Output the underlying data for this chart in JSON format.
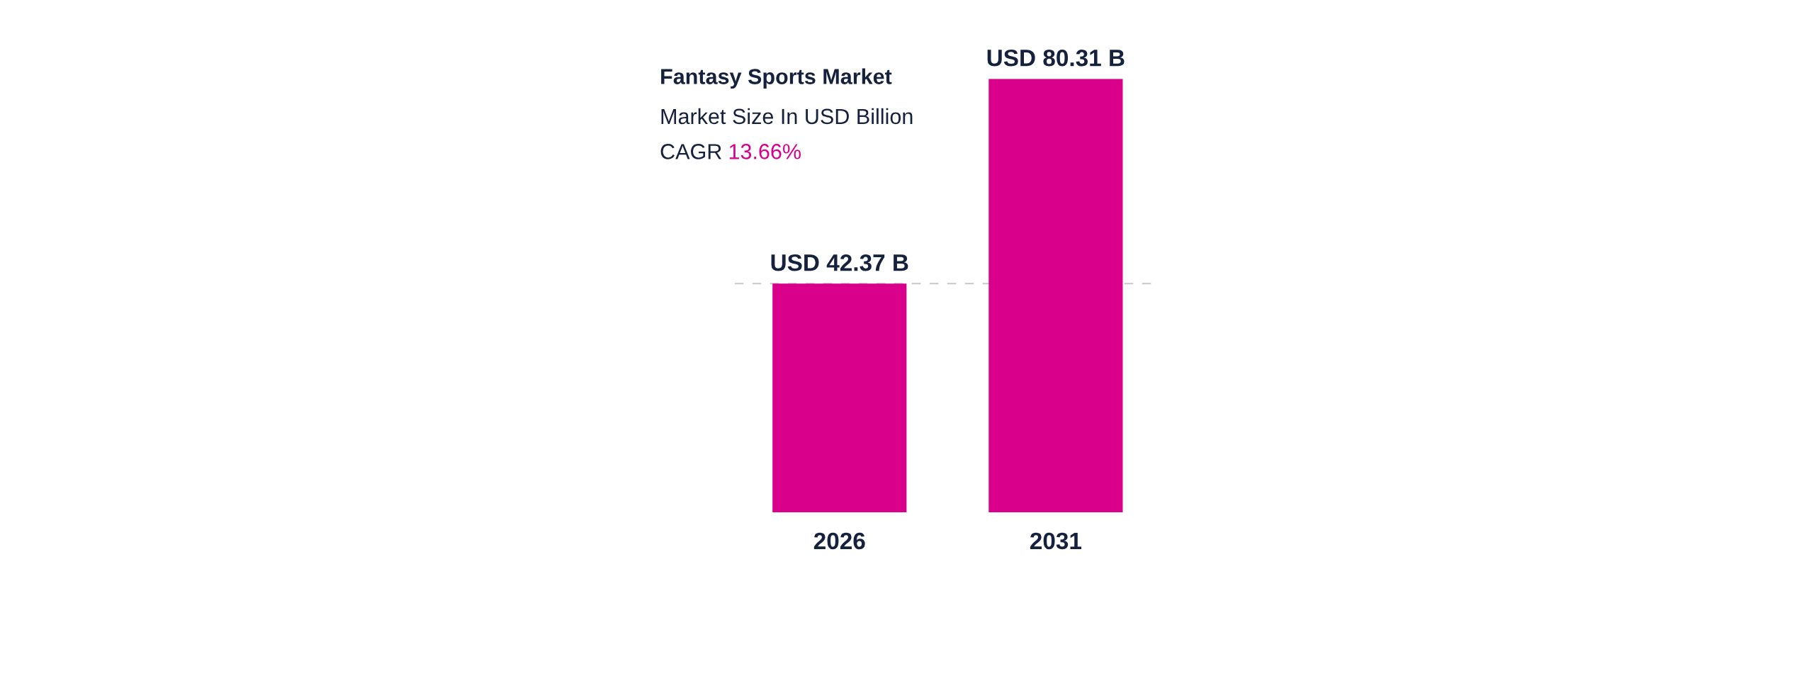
{
  "chart_data": {
    "type": "bar",
    "title": "Fantasy Sports Market",
    "subtitle": "Market Size In USD Billion",
    "annotations": [
      "CAGR 13.66%"
    ],
    "categories": [
      "2026",
      "2031"
    ],
    "series": [
      {
        "color": "#d9008b",
        "values": [
          42.37,
          80.31
        ],
        "value_labels": [
          "USD 42.37 B",
          "USD 80.31 B"
        ]
      }
    ],
    "ref_lines": [
      {
        "axis": "y",
        "value": 42.37,
        "color": "#c8c8c8",
        "line_style": "dashed"
      }
    ],
    "grid": false,
    "legend": false,
    "tick_labels": "x"
  }
}
